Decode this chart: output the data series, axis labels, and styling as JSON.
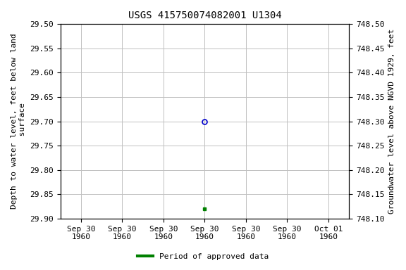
{
  "title": "USGS 415750074082001 U1304",
  "ylabel_left": "Depth to water level, feet below land\n surface",
  "ylabel_right": "Groundwater level above NGVD 1929, feet",
  "ylim_left_top": 29.5,
  "ylim_left_bottom": 29.9,
  "ylim_right_top": 748.5,
  "ylim_right_bottom": 748.1,
  "yticks_left": [
    29.5,
    29.55,
    29.6,
    29.65,
    29.7,
    29.75,
    29.8,
    29.85,
    29.9
  ],
  "yticks_right": [
    748.5,
    748.45,
    748.4,
    748.35,
    748.3,
    748.25,
    748.2,
    748.15,
    748.1
  ],
  "data_open_circle": {
    "x": 3,
    "value": 29.7,
    "color": "#0000cc",
    "marker": "o",
    "markersize": 5,
    "fillstyle": "none",
    "markeredgewidth": 1.2
  },
  "data_filled_square": {
    "x": 3,
    "value": 29.88,
    "color": "#008000",
    "marker": "s",
    "markersize": 3.5
  },
  "xlim": [
    -0.5,
    6.5
  ],
  "xtick_positions": [
    0,
    1,
    2,
    3,
    4,
    5,
    6
  ],
  "xtick_labels": [
    "Sep 30\n1960",
    "Sep 30\n1960",
    "Sep 30\n1960",
    "Sep 30\n1960",
    "Sep 30\n1960",
    "Sep 30\n1960",
    "Oct 01\n1960"
  ],
  "legend_label": "Period of approved data",
  "legend_color": "#008000",
  "background_color": "#ffffff",
  "grid_color": "#c0c0c0",
  "title_fontsize": 10,
  "ylabel_left_fontsize": 8,
  "ylabel_right_fontsize": 8,
  "tick_fontsize": 8
}
